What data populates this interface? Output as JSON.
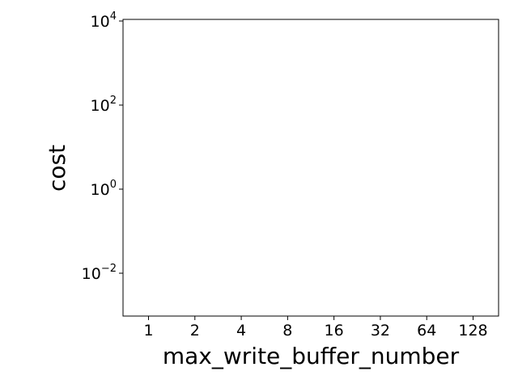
{
  "chart_data": {
    "type": "bar",
    "title": "",
    "xlabel": "max_write_buffer_number",
    "ylabel": "cost",
    "y_scale": "log",
    "ylim": [
      0.001,
      10000
    ],
    "categories": [
      "1",
      "2",
      "4",
      "8",
      "16",
      "32",
      "64",
      "128"
    ],
    "highlighted_category": "32",
    "highlight_color": "#ff0000",
    "y_ticks": [
      {
        "value": 0.01,
        "base": "10",
        "exp": "−2"
      },
      {
        "value": 1,
        "base": "10",
        "exp": "0"
      },
      {
        "value": 100,
        "base": "10",
        "exp": "2"
      },
      {
        "value": 10000,
        "base": "10",
        "exp": "4"
      }
    ],
    "series": [],
    "grid": false,
    "legend": "none"
  }
}
